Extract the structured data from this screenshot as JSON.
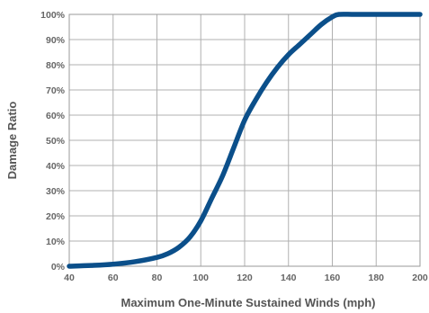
{
  "chart_data": {
    "type": "line",
    "title": "",
    "xlabel": "Maximum One-Minute Sustained Winds (mph)",
    "ylabel": "Damage Ratio",
    "xlim": [
      40,
      200
    ],
    "ylim": [
      0,
      100
    ],
    "x_ticks": [
      40,
      60,
      80,
      100,
      120,
      140,
      160,
      180,
      200
    ],
    "x_tick_labels": [
      "40",
      "60",
      "80",
      "100",
      "120",
      "140",
      "160",
      "180",
      "200"
    ],
    "y_ticks": [
      0,
      10,
      20,
      30,
      40,
      50,
      60,
      70,
      80,
      90,
      100
    ],
    "y_tick_labels": [
      "0%",
      "10%",
      "20%",
      "30%",
      "40%",
      "50%",
      "60%",
      "70%",
      "80%",
      "90%",
      "100%"
    ],
    "grid": true,
    "legend": "none",
    "series": [
      {
        "color": "#0b4f8a",
        "x": [
          40,
          50,
          60,
          70,
          80,
          85,
          90,
          95,
          100,
          105,
          110,
          115,
          120,
          125,
          130,
          135,
          140,
          145,
          150,
          155,
          160,
          163,
          170,
          180,
          190,
          200
        ],
        "y": [
          0,
          0.3,
          0.8,
          1.8,
          3.5,
          5,
          7.5,
          11.5,
          18,
          27,
          36,
          47,
          58,
          66,
          73,
          79,
          84,
          88,
          92,
          96,
          99,
          100,
          100,
          100,
          100,
          100
        ]
      }
    ]
  }
}
